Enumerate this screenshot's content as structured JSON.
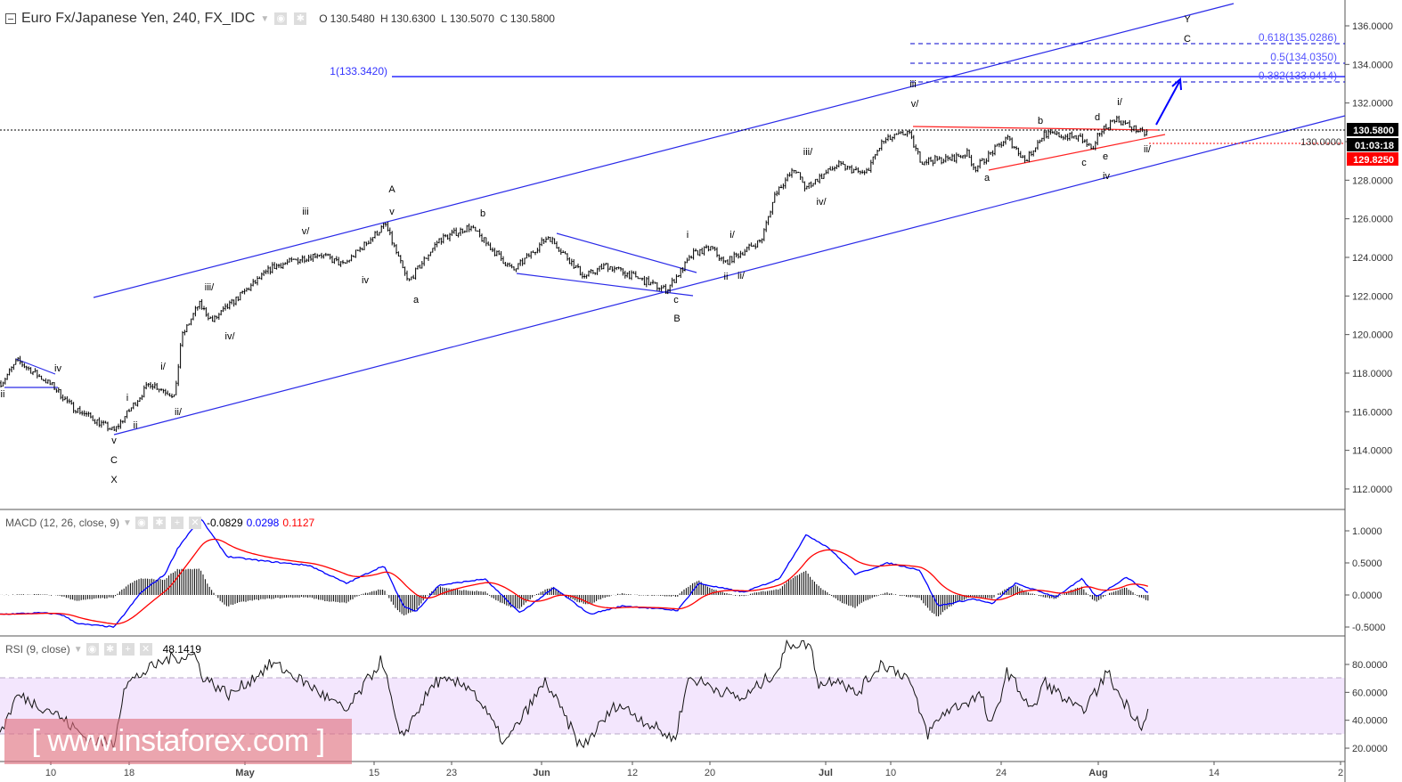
{
  "header": {
    "symbol_title": "Euro Fx/Japanese Yen, 240, FX_IDC",
    "ohlc": {
      "o_label": "O",
      "o": "130.5480",
      "h_label": "H",
      "h": "130.6300",
      "l_label": "L",
      "l": "130.5070",
      "c_label": "C",
      "c": "130.5800"
    }
  },
  "price_axis": {
    "ticks": [
      "136.0000",
      "134.0000",
      "132.0000",
      "130.0000",
      "128.0000",
      "126.0000",
      "124.0000",
      "122.0000",
      "120.0000",
      "118.0000",
      "116.0000",
      "114.0000",
      "112.0000"
    ],
    "last_price": "130.5800",
    "countdown": "01:03:18",
    "red_level": "129.8250"
  },
  "macd": {
    "legend": "MACD (12, 26, close, 9)",
    "hist_value": "-0.0829",
    "macd_value": "0.0298",
    "signal_value": "0.1127",
    "ticks": [
      "1.0000",
      "0.5000",
      "0.0000",
      "-0.5000"
    ],
    "colors": {
      "macd": "#0000ff",
      "signal": "#ff0000",
      "histogram": "#000000"
    }
  },
  "rsi": {
    "legend": "RSI (9, close)",
    "value": "48.1419",
    "ticks": [
      "80.0000",
      "60.0000",
      "40.0000",
      "20.0000"
    ],
    "band": [
      30,
      70
    ],
    "band_color": "#f3e6fd"
  },
  "time_axis": {
    "ticks": [
      "10",
      "18",
      "May",
      "15",
      "23",
      "Jun",
      "12",
      "20",
      "Jul",
      "10",
      "24",
      "Aug",
      "14",
      "2"
    ]
  },
  "annotations": {
    "target_level": "1(133.3420)",
    "fib_levels": [
      "0.618(135.0286)",
      "0.5(134.0350)",
      "0.382(133.0414)"
    ],
    "wave_labels": [
      "ii",
      "iv",
      "v",
      "C",
      "X",
      "ii",
      "i",
      "i/",
      "ii/",
      "iii/",
      "iv/",
      "iii",
      "v/",
      "iv",
      "A",
      "v",
      "a",
      "b",
      "c",
      "B",
      "i",
      "i/",
      "ii",
      "ii/",
      "iii/",
      "iv/",
      "v/",
      "iii",
      "a",
      "b",
      "c",
      "d",
      "e",
      "iv",
      "i/",
      "ii/",
      "Y",
      "C"
    ]
  },
  "watermark": {
    "text": "[ www.instaforex.com ]"
  },
  "chart_data": {
    "type": "ohlc",
    "title": "Euro Fx/Japanese Yen, 240, FX_IDC",
    "ylim": [
      111,
      137
    ],
    "colors": {
      "bars": "#000000",
      "channel": "#0000ff",
      "triangle": "#ff0000",
      "fib": "#0000ff"
    },
    "price_path": [
      [
        "04-05 00",
        117.5
      ],
      [
        "04-06 14",
        118.65
      ],
      [
        "04-10 07",
        117.3
      ],
      [
        "04-12 02",
        116.3
      ],
      [
        "04-16 11",
        115.0
      ],
      [
        "04-20 08",
        117.5
      ],
      [
        "04-23 04",
        116.8
      ],
      [
        "04-23 20",
        119.8
      ],
      [
        "04-25 20",
        121.6
      ],
      [
        "04-27 08",
        120.7
      ],
      [
        "04-30 04",
        121.9
      ],
      [
        "05-04 00",
        123.5
      ],
      [
        "05-09 00",
        124.2
      ],
      [
        "05-11 16",
        123.6
      ],
      [
        "05-16 04",
        125.7
      ],
      [
        "05-18 12",
        122.7
      ],
      [
        "05-21 16",
        124.9
      ],
      [
        "05-24 20",
        125.6
      ],
      [
        "05-29 04",
        123.3
      ],
      [
        "06-01 20",
        125.1
      ],
      [
        "06-06 04",
        123.0
      ],
      [
        "06-08 20",
        123.6
      ],
      [
        "06-15 12",
        122.3
      ],
      [
        "06-18 08",
        124.2
      ],
      [
        "06-20 04",
        124.5
      ],
      [
        "06-21 12",
        123.7
      ],
      [
        "06-25 08",
        124.9
      ],
      [
        "06-26 20",
        127.4
      ],
      [
        "06-28 20",
        128.6
      ],
      [
        "06-29 20",
        127.6
      ],
      [
        "07-03 12",
        128.8
      ],
      [
        "07-06 20",
        128.3
      ],
      [
        "07-09 00",
        130.0
      ],
      [
        "07-12 04",
        130.5
      ],
      [
        "07-13 20",
        129.0
      ],
      [
        "07-17 16",
        129.1
      ],
      [
        "07-19 16",
        129.4
      ],
      [
        "07-20 16",
        128.6
      ],
      [
        "07-24 12",
        130.2
      ],
      [
        "07-26 00",
        129.0
      ],
      [
        "07-27 12",
        130.4
      ],
      [
        "07-30 12",
        130.2
      ],
      [
        "07-31 16",
        129.5
      ],
      [
        "08-01 00",
        130.4
      ],
      [
        "08-02 20",
        131.2
      ],
      [
        "08-06 04",
        130.4
      ],
      [
        "08-06 16",
        130.58
      ]
    ],
    "macd_path": [
      [
        "04-05 00",
        -0.3
      ],
      [
        "04-09 00",
        -0.28
      ],
      [
        "04-11 00",
        -0.3
      ],
      [
        "04-12 20",
        -0.45
      ],
      [
        "04-16 12",
        -0.5
      ],
      [
        "04-19 08",
        0.04
      ],
      [
        "04-22 00",
        0.32
      ],
      [
        "04-23 12",
        0.74
      ],
      [
        "04-26 00",
        1.2
      ],
      [
        "04-29 00",
        0.6
      ],
      [
        "05-03 00",
        0.53
      ],
      [
        "05-08 00",
        0.46
      ],
      [
        "05-12 00",
        0.18
      ],
      [
        "05-16 00",
        0.46
      ],
      [
        "05-18 00",
        -0.17
      ],
      [
        "05-19 08",
        -0.26
      ],
      [
        "05-21 16",
        0.15
      ],
      [
        "05-26 08",
        0.25
      ],
      [
        "05-29 20",
        -0.28
      ],
      [
        "06-02 12",
        0.11
      ],
      [
        "06-06 20",
        -0.3
      ],
      [
        "06-10 20",
        -0.17
      ],
      [
        "06-16 16",
        -0.24
      ],
      [
        "06-18 20",
        0.18
      ],
      [
        "06-23 12",
        0.04
      ],
      [
        "06-27 04",
        0.25
      ],
      [
        "06-30 00",
        0.94
      ],
      [
        "07-02 08",
        0.74
      ],
      [
        "07-05 16",
        0.32
      ],
      [
        "07-09 16",
        0.5
      ],
      [
        "07-13 16",
        0.39
      ],
      [
        "07-16 00",
        -0.17
      ],
      [
        "07-20 12",
        -0.06
      ],
      [
        "07-22 20",
        -0.14
      ],
      [
        "07-25 04",
        0.18
      ],
      [
        "07-28 12",
        -0.03
      ],
      [
        "07-30 16",
        0.25
      ],
      [
        "07-31 20",
        -0.03
      ],
      [
        "08-04 04",
        0.28
      ],
      [
        "08-06 16",
        0.0298
      ]
    ],
    "rsi_path": [
      [
        "04-05 00",
        33
      ],
      [
        "04-06 14",
        58
      ],
      [
        "04-10 07",
        46
      ],
      [
        "04-13 20",
        26
      ],
      [
        "04-16 11",
        23
      ],
      [
        "04-17 12",
        65
      ],
      [
        "04-20 08",
        77
      ],
      [
        "04-22 08",
        84
      ],
      [
        "04-25 08",
        87
      ],
      [
        "04-26 08",
        71
      ],
      [
        "04-29 08",
        58
      ],
      [
        "05-04 00",
        81
      ],
      [
        "05-08 00",
        65
      ],
      [
        "05-12 00",
        46
      ],
      [
        "05-15 20",
        84
      ],
      [
        "05-17 16",
        26
      ],
      [
        "05-21 08",
        68
      ],
      [
        "05-24 20",
        65
      ],
      [
        "05-28 08",
        23
      ],
      [
        "06-01 12",
        68
      ],
      [
        "06-05 20",
        20
      ],
      [
        "06-10 04",
        52
      ],
      [
        "06-16 08",
        26
      ],
      [
        "06-17 20",
        71
      ],
      [
        "06-23 08",
        55
      ],
      [
        "06-27 04",
        77
      ],
      [
        "06-28 00",
        95
      ],
      [
        "06-30 08",
        95
      ],
      [
        "07-01 08",
        65
      ],
      [
        "07-03 12",
        71
      ],
      [
        "07-05 16",
        58
      ],
      [
        "07-08 20",
        81
      ],
      [
        "07-12 04",
        71
      ],
      [
        "07-14 16",
        30
      ],
      [
        "07-16 20",
        46
      ],
      [
        "07-21 12",
        58
      ],
      [
        "07-22 16",
        33
      ],
      [
        "07-24 12",
        75
      ],
      [
        "07-26 16",
        46
      ],
      [
        "07-27 12",
        68
      ],
      [
        "07-30 12",
        46
      ],
      [
        "07-31 16",
        58
      ],
      [
        "08-02 00",
        75
      ],
      [
        "08-03 08",
        58
      ],
      [
        "08-06 00",
        36
      ],
      [
        "08-06 16",
        48.1419
      ]
    ]
  }
}
